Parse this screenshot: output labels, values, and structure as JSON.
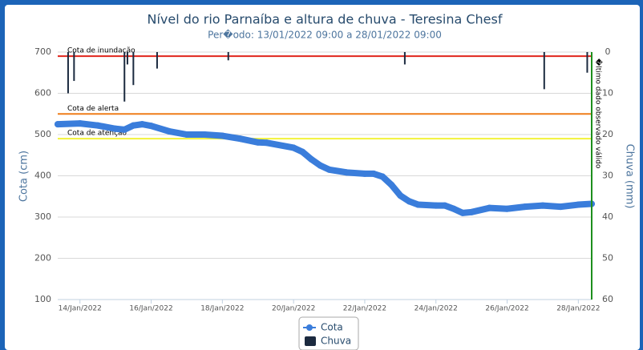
{
  "chart_data": {
    "type": "line-bar",
    "title": "Nível do rio Parnaíba e altura de chuva - Teresina Chesf",
    "subtitle": "Per�odo: 13/01/2022 09:00 a 28/01/2022 09:00",
    "y_label": "Cota (cm)",
    "y2_label": "Chuva (mm)",
    "xlim": [
      "2022-01-13T09:00",
      "2022-01-28T09:00"
    ],
    "xticks": [
      {
        "value": "2022-01-14T00:00",
        "label": "14/Jan/2022"
      },
      {
        "value": "2022-01-16T00:00",
        "label": "16/Jan/2022"
      },
      {
        "value": "2022-01-18T00:00",
        "label": "18/Jan/2022"
      },
      {
        "value": "2022-01-20T00:00",
        "label": "20/Jan/2022"
      },
      {
        "value": "2022-01-22T00:00",
        "label": "22/Jan/2022"
      },
      {
        "value": "2022-01-24T00:00",
        "label": "24/Jan/2022"
      },
      {
        "value": "2022-01-26T00:00",
        "label": "26/Jan/2022"
      },
      {
        "value": "2022-01-28T00:00",
        "label": "28/Jan/2022"
      }
    ],
    "ylim": [
      100,
      700
    ],
    "yticks": [
      100,
      200,
      300,
      400,
      500,
      600,
      700
    ],
    "y2lim": [
      60,
      0
    ],
    "y2ticks": [
      0,
      10,
      20,
      30,
      40,
      50,
      60
    ],
    "grid": true,
    "series": [
      {
        "name": "Cota",
        "type": "line",
        "color": "#3a7ddb",
        "x": [
          "2022-01-13T09:00",
          "2022-01-14T00:00",
          "2022-01-14T12:00",
          "2022-01-15T00:00",
          "2022-01-15T06:00",
          "2022-01-15T12:00",
          "2022-01-15T18:00",
          "2022-01-16T00:00",
          "2022-01-16T12:00",
          "2022-01-17T00:00",
          "2022-01-17T12:00",
          "2022-01-18T00:00",
          "2022-01-18T12:00",
          "2022-01-19T00:00",
          "2022-01-19T06:00",
          "2022-01-20T00:00",
          "2022-01-20T06:00",
          "2022-01-20T12:00",
          "2022-01-20T18:00",
          "2022-01-21T00:00",
          "2022-01-21T12:00",
          "2022-01-22T00:00",
          "2022-01-22T06:00",
          "2022-01-22T12:00",
          "2022-01-22T18:00",
          "2022-01-23T00:00",
          "2022-01-23T06:00",
          "2022-01-23T12:00",
          "2022-01-24T00:00",
          "2022-01-24T06:00",
          "2022-01-24T12:00",
          "2022-01-24T18:00",
          "2022-01-25T00:00",
          "2022-01-25T12:00",
          "2022-01-26T00:00",
          "2022-01-26T12:00",
          "2022-01-27T00:00",
          "2022-01-27T12:00",
          "2022-01-28T00:00",
          "2022-01-28T09:00"
        ],
        "values": [
          525,
          527,
          522,
          514,
          512,
          522,
          525,
          521,
          508,
          500,
          500,
          497,
          490,
          481,
          480,
          468,
          458,
          440,
          425,
          415,
          408,
          405,
          405,
          398,
          378,
          352,
          338,
          330,
          328,
          328,
          320,
          310,
          312,
          322,
          320,
          325,
          328,
          325,
          330,
          332
        ]
      },
      {
        "name": "Chuva",
        "type": "bar",
        "axis": "y2",
        "color": "#1b2a3f",
        "x": [
          "2022-01-13T16:00",
          "2022-01-13T20:00",
          "2022-01-15T06:00",
          "2022-01-15T08:00",
          "2022-01-15T12:00",
          "2022-01-16T04:00",
          "2022-01-18T04:00",
          "2022-01-23T03:00",
          "2022-01-27T01:00",
          "2022-01-28T06:00"
        ],
        "values": [
          10,
          7,
          12,
          3,
          8,
          4,
          2,
          3,
          9,
          5
        ]
      }
    ],
    "plot_lines": [
      {
        "label": "Cota de inundação",
        "value": 690,
        "color": "#e0251b"
      },
      {
        "label": "Cota de alerta",
        "value": 550,
        "color": "#ef7d1a"
      },
      {
        "label": "Cota de atenção",
        "value": 490,
        "color": "#f2f239"
      }
    ],
    "last_data_line": {
      "x": "2022-01-28T09:00",
      "label": "�ltimo dado observado válido",
      "color": "#1e8f1e"
    }
  }
}
